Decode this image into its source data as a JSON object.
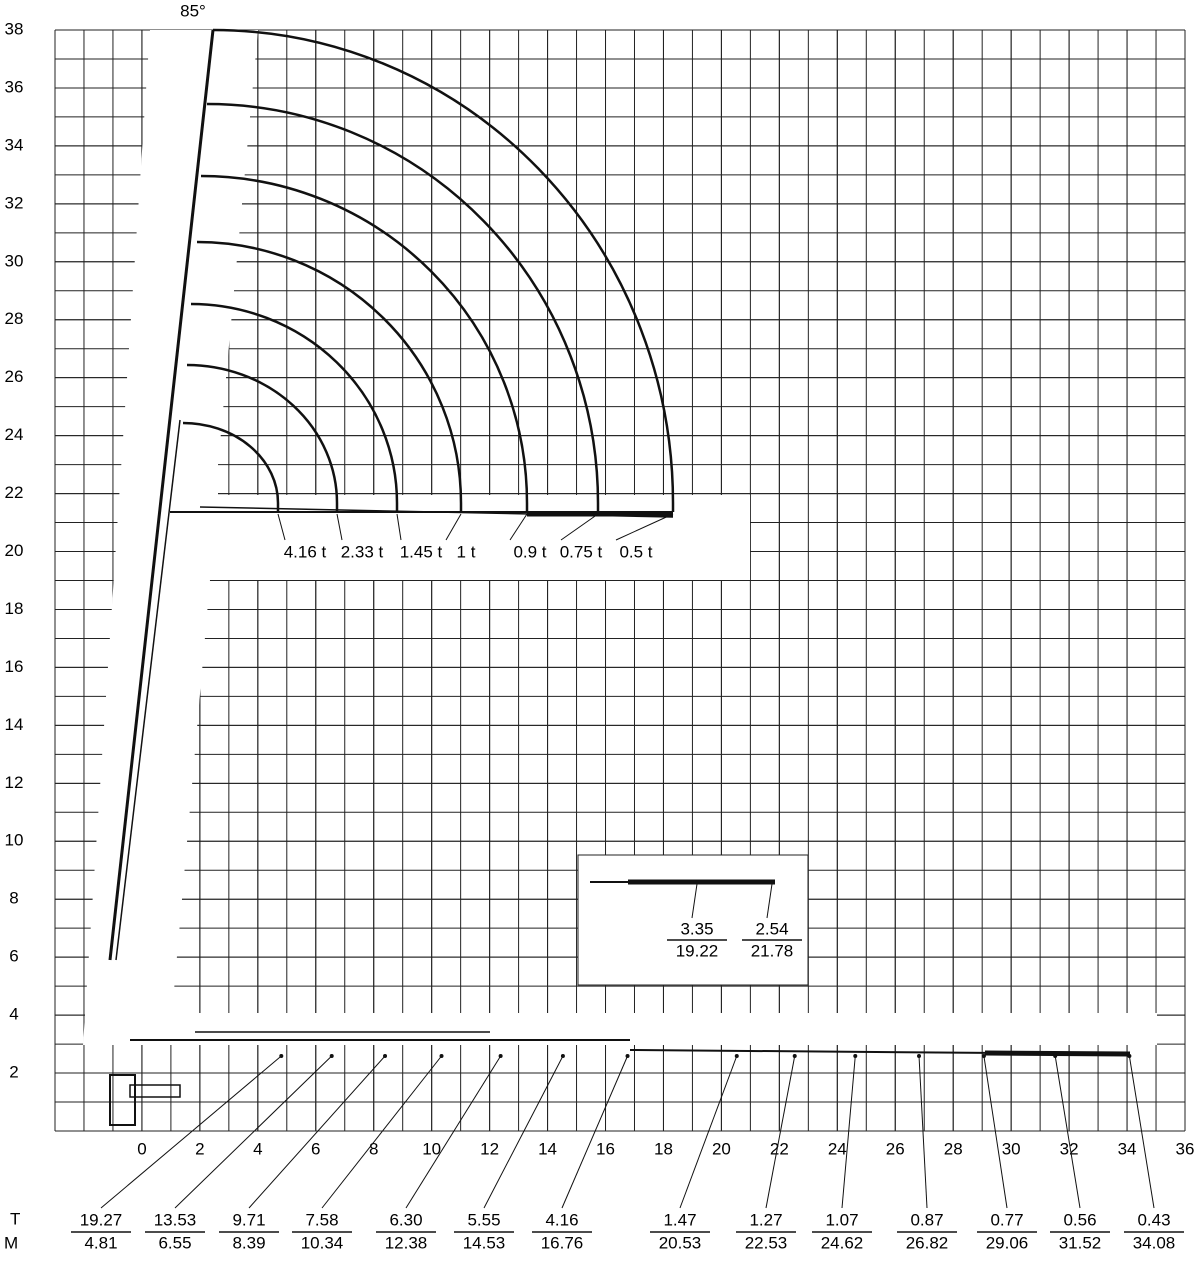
{
  "chart_data": {
    "type": "load-chart",
    "angle_label": "85°",
    "xlim": [
      -3,
      36
    ],
    "ylim": [
      0,
      38
    ],
    "xticks": [
      0,
      2,
      4,
      6,
      8,
      10,
      12,
      14,
      16,
      18,
      20,
      22,
      24,
      26,
      28,
      30,
      32,
      34,
      36
    ],
    "yticks": [
      2,
      4,
      6,
      8,
      10,
      12,
      14,
      16,
      18,
      20,
      22,
      24,
      26,
      28,
      30,
      32,
      34,
      36,
      38
    ],
    "top_loads": [
      "4.16 t",
      "2.33 t",
      "1.45 t",
      "1 t",
      "0.9 t",
      "0.75 t",
      "0.5 t"
    ],
    "row_labels": [
      "T",
      "M"
    ],
    "bottom_loads": [
      {
        "load": "19.27",
        "reach": "4.81"
      },
      {
        "load": "13.53",
        "reach": "6.55"
      },
      {
        "load": "9.71",
        "reach": "8.39"
      },
      {
        "load": "7.58",
        "reach": "10.34"
      },
      {
        "load": "6.30",
        "reach": "12.38"
      },
      {
        "load": "5.55",
        "reach": "14.53"
      },
      {
        "load": "4.16",
        "reach": "16.76"
      },
      {
        "load": "1.47",
        "reach": "20.53"
      },
      {
        "load": "1.27",
        "reach": "22.53"
      },
      {
        "load": "1.07",
        "reach": "24.62"
      },
      {
        "load": "0.87",
        "reach": "26.82"
      },
      {
        "load": "0.77",
        "reach": "29.06"
      },
      {
        "load": "0.56",
        "reach": "31.52"
      },
      {
        "load": "0.43",
        "reach": "34.08"
      }
    ],
    "inset_loads": [
      {
        "load": "3.35",
        "reach": "19.22"
      },
      {
        "load": "2.54",
        "reach": "21.78"
      }
    ]
  }
}
